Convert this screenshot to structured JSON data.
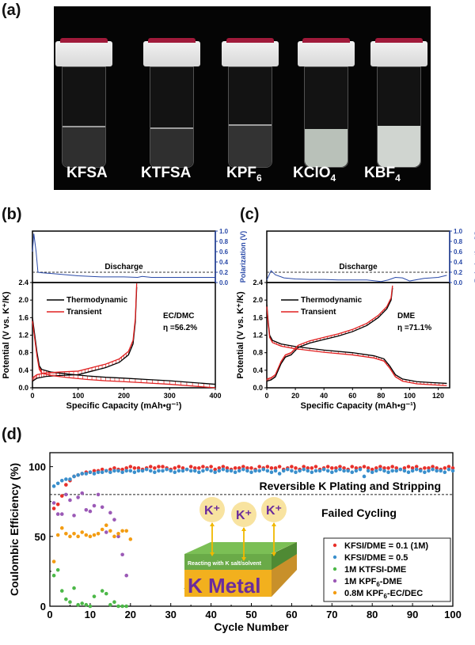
{
  "figure": {
    "panel_labels": [
      "(a)",
      "(b)",
      "(c)",
      "(d)"
    ]
  },
  "photo": {
    "background": "#050505",
    "vials": [
      {
        "label": "KFSA",
        "sub": "",
        "sub_suffix": "",
        "appearance": "clear"
      },
      {
        "label": "KTFSA",
        "sub": "",
        "sub_suffix": "",
        "appearance": "clear"
      },
      {
        "label": "KPF",
        "sub": "6",
        "sub_suffix": "",
        "appearance": "clear"
      },
      {
        "label": "KClO",
        "sub": "4",
        "sub_suffix": "",
        "appearance": "cloudy"
      },
      {
        "label": "KBF",
        "sub": "4",
        "sub_suffix": "",
        "appearance": "cloudy"
      }
    ]
  },
  "chart_data": [
    {
      "id": "b",
      "type": "line",
      "title": "",
      "xlabel": "Specific Capacity (mAh•g⁻¹)",
      "ylabel": "Potential (V vs. K⁺/K)",
      "y2label": "Polarization (V)",
      "xlim": [
        0,
        400
      ],
      "ylim": [
        0,
        2.4
      ],
      "y2lim": [
        0,
        1.0
      ],
      "xticks": [
        0,
        100,
        200,
        300,
        400
      ],
      "yticks": [
        0.0,
        0.4,
        0.8,
        1.2,
        1.6,
        2.0,
        2.4
      ],
      "y2ticks": [
        0.0,
        0.2,
        0.4,
        0.6,
        0.8,
        1.0
      ],
      "annotation_top": "Discharge",
      "reference_line_y2": 0.2,
      "electrolyte": "EC/DMC",
      "efficiency": "η =56.2%",
      "legend": [
        "Thermodynamic",
        "Transient"
      ],
      "colors": {
        "thermodynamic": "#000000",
        "transient": "#e02020",
        "polarization": "#2a4aa8"
      },
      "polarization": {
        "x": [
          0,
          3,
          8,
          12,
          20,
          50,
          100,
          150,
          200,
          230,
          240,
          260,
          300,
          350,
          400
        ],
        "y": [
          0.6,
          0.95,
          0.6,
          0.2,
          0.19,
          0.17,
          0.13,
          0.11,
          0.11,
          0.1,
          0.12,
          0.1,
          0.1,
          0.1,
          0.1
        ]
      },
      "discharge": {
        "x": [
          0,
          5,
          10,
          15,
          20,
          40,
          80,
          120,
          160,
          200,
          250,
          300,
          350,
          400
        ],
        "y": [
          1.6,
          1.2,
          0.8,
          0.5,
          0.42,
          0.36,
          0.31,
          0.27,
          0.24,
          0.22,
          0.19,
          0.16,
          0.12,
          0.08
        ]
      },
      "charge": {
        "x": [
          0,
          10,
          30,
          60,
          100,
          130,
          160,
          190,
          210,
          220,
          225,
          228
        ],
        "y": [
          0.15,
          0.22,
          0.26,
          0.28,
          0.3,
          0.38,
          0.46,
          0.58,
          0.75,
          1.0,
          1.5,
          2.3
        ]
      }
    },
    {
      "id": "c",
      "type": "line",
      "title": "",
      "xlabel": "Specific Capacity (mAh•g⁻¹)",
      "ylabel": "Potential (V vs. K⁺/K)",
      "y2label": "Polarization (V)",
      "xlim": [
        0,
        128
      ],
      "ylim": [
        0,
        2.4
      ],
      "y2lim": [
        0,
        1.0
      ],
      "xticks": [
        0,
        20,
        40,
        60,
        80,
        100,
        120
      ],
      "yticks": [
        0.0,
        0.4,
        0.8,
        1.2,
        1.6,
        2.0,
        2.4
      ],
      "y2ticks": [
        0.0,
        0.2,
        0.4,
        0.6,
        0.8,
        1.0
      ],
      "annotation_top": "Discharge",
      "reference_line_y2": 0.2,
      "electrolyte": "DME",
      "efficiency": "η =71.1%",
      "legend": [
        "Thermodynamic",
        "Transient"
      ],
      "colors": {
        "thermodynamic": "#000000",
        "transient": "#e02020",
        "polarization": "#2a4aa8"
      },
      "polarization": {
        "x": [
          0,
          3,
          6,
          12,
          20,
          30,
          40,
          50,
          60,
          70,
          80,
          85,
          90,
          95,
          100,
          110,
          120,
          126
        ],
        "y": [
          0.05,
          0.23,
          0.15,
          0.09,
          0.07,
          0.06,
          0.06,
          0.05,
          0.05,
          0.05,
          0.02,
          0.05,
          0.1,
          0.09,
          0.03,
          0.08,
          0.1,
          0.14
        ]
      },
      "discharge": {
        "x": [
          0,
          1,
          2,
          4,
          10,
          20,
          40,
          60,
          75,
          82,
          86,
          90,
          95,
          105,
          115,
          126
        ],
        "y": [
          1.9,
          1.5,
          1.2,
          1.08,
          1.0,
          0.94,
          0.86,
          0.8,
          0.73,
          0.66,
          0.5,
          0.3,
          0.2,
          0.14,
          0.12,
          0.1
        ]
      },
      "charge": {
        "x": [
          0,
          3,
          6,
          10,
          13,
          17,
          22,
          30,
          40,
          50,
          60,
          70,
          78,
          84,
          87,
          88
        ],
        "y": [
          0.15,
          0.18,
          0.25,
          0.55,
          0.7,
          0.75,
          0.92,
          1.02,
          1.1,
          1.18,
          1.28,
          1.42,
          1.6,
          1.8,
          2.0,
          2.28
        ]
      }
    },
    {
      "id": "d",
      "type": "scatter",
      "title": "",
      "xlabel": "Cycle Number",
      "ylabel": "Coulombic Efficiency (%)",
      "xlim": [
        0,
        100
      ],
      "ylim": [
        0,
        110
      ],
      "xticks": [
        0,
        10,
        20,
        30,
        40,
        50,
        60,
        70,
        80,
        90,
        100
      ],
      "yticks": [
        0,
        50,
        100
      ],
      "threshold_line": 80,
      "annotation_upper": "Reversible K Plating and Stripping",
      "annotation_lower": "Failed Cycling",
      "inset": {
        "ions": [
          "K⁺",
          "K⁺",
          "K⁺"
        ],
        "layer_text": "Reacting with K salt/solvent",
        "metal_text": "K  Metal"
      },
      "legend_position": "bottom-right",
      "series": [
        {
          "name": "KFSI/DME = 0.1 (1M)",
          "name_main": "KFSI/DME = 0.1 (1M)",
          "color": "#e8302a",
          "x": [
            1,
            2,
            3,
            4,
            5,
            6,
            7,
            8,
            9,
            10,
            11,
            12,
            13,
            14,
            15,
            16,
            17,
            18,
            19,
            20,
            21,
            22,
            23,
            24,
            25,
            26,
            27,
            28,
            29,
            30,
            31,
            32,
            33,
            34,
            35,
            36,
            37,
            38,
            39,
            40,
            41,
            42,
            43,
            44,
            45,
            46,
            47,
            48,
            49,
            50,
            51,
            52,
            53,
            54,
            55,
            56,
            57,
            58,
            59,
            60,
            61,
            62,
            63,
            64,
            65,
            66,
            67,
            68,
            69,
            70,
            71,
            72,
            73,
            74,
            75,
            76,
            77,
            78,
            79,
            80,
            81,
            82,
            83,
            84,
            85,
            86,
            87,
            88,
            89,
            90,
            91,
            92,
            93,
            94,
            95,
            96,
            97,
            98,
            99,
            100
          ],
          "y": [
            70,
            73,
            79,
            87,
            90,
            93,
            94,
            95,
            96,
            96,
            97,
            97,
            98,
            97,
            98,
            99,
            98,
            98,
            99,
            100,
            99,
            99,
            98,
            99,
            100,
            99,
            100,
            100,
            99,
            98,
            99,
            100,
            99,
            98,
            100,
            99,
            99,
            100,
            99,
            100,
            98,
            99,
            100,
            99,
            98,
            99,
            99,
            100,
            99,
            99,
            98,
            100,
            99,
            100,
            99,
            99,
            100,
            98,
            99,
            100,
            99,
            98,
            100,
            99,
            99,
            100,
            98,
            99,
            100,
            99,
            99,
            100,
            99,
            98,
            100,
            99,
            99,
            100,
            99,
            98,
            99,
            100,
            99,
            99,
            100,
            99,
            98,
            99,
            100,
            99,
            100,
            98,
            99,
            99,
            100,
            99,
            98,
            99,
            100,
            99
          ]
        },
        {
          "name": "KFSI/DME = 0.5",
          "name_main": "KFSI/DME = 0.5",
          "color": "#3a8fcc",
          "x": [
            1,
            2,
            3,
            4,
            5,
            6,
            7,
            8,
            9,
            10,
            11,
            12,
            13,
            14,
            15,
            16,
            17,
            18,
            19,
            20,
            21,
            22,
            23,
            24,
            25,
            26,
            27,
            28,
            29,
            30,
            31,
            32,
            33,
            34,
            35,
            36,
            37,
            38,
            39,
            40,
            41,
            42,
            43,
            44,
            45,
            46,
            47,
            48,
            49,
            50,
            51,
            52,
            53,
            54,
            55,
            56,
            57,
            58,
            59,
            60,
            61,
            62,
            63,
            64,
            65,
            66,
            67,
            68,
            69,
            70,
            71,
            72,
            73,
            74,
            75,
            76,
            77,
            78,
            79,
            80,
            81,
            82,
            83,
            84,
            85,
            86,
            87,
            88,
            89,
            90,
            91,
            92,
            93,
            94,
            95,
            96,
            97,
            98,
            99,
            100
          ],
          "y": [
            86,
            88,
            90,
            91,
            91,
            93,
            94,
            95,
            95,
            96,
            95,
            96,
            96,
            97,
            96,
            97,
            97,
            96,
            97,
            97,
            96,
            97,
            97,
            98,
            97,
            96,
            97,
            97,
            98,
            97,
            96,
            97,
            97,
            98,
            97,
            97,
            96,
            97,
            98,
            97,
            96,
            97,
            98,
            97,
            97,
            96,
            97,
            98,
            97,
            96,
            97,
            97,
            98,
            97,
            96,
            97,
            95,
            97,
            98,
            97,
            96,
            97,
            98,
            97,
            96,
            97,
            97,
            98,
            97,
            96,
            97,
            98,
            97,
            97,
            96,
            97,
            98,
            93,
            97,
            96,
            97,
            98,
            97,
            96,
            97,
            97,
            98,
            97,
            96,
            97,
            98,
            97,
            96,
            97,
            98,
            97,
            97,
            96,
            98,
            97
          ]
        },
        {
          "name": "1M KTFSI-DME",
          "name_main": "1M KTFSI-DME",
          "color": "#4cb848",
          "x": [
            1,
            2,
            3,
            4,
            5,
            6,
            7,
            8,
            9,
            10,
            11,
            13,
            14,
            15,
            16,
            17,
            18,
            19
          ],
          "y": [
            22,
            26,
            11,
            5,
            3,
            13,
            1,
            2,
            1,
            0,
            7,
            11,
            9,
            1,
            3,
            0,
            0,
            0
          ]
        },
        {
          "name": "1M KPF6-DME",
          "name_main": "1M KPF",
          "name_sub": "6",
          "name_suffix": "-DME",
          "color": "#9b59b6",
          "x": [
            1,
            2,
            3,
            4,
            5,
            6,
            7,
            8,
            9,
            10,
            11,
            12,
            13,
            14,
            15,
            16,
            17,
            18,
            19
          ],
          "y": [
            74,
            66,
            66,
            80,
            76,
            65,
            78,
            81,
            69,
            68,
            72,
            80,
            71,
            53,
            67,
            62,
            50,
            37,
            22
          ]
        },
        {
          "name": "0.8M KPF6-EC/DEC",
          "name_main": "0.8M KPF",
          "name_sub": "6",
          "name_suffix": "-EC/DEC",
          "color": "#f39c12",
          "x": [
            1,
            2,
            3,
            4,
            5,
            6,
            7,
            8,
            9,
            10,
            11,
            12,
            13,
            14,
            15,
            16,
            17,
            18,
            19,
            20
          ],
          "y": [
            32,
            51,
            56,
            52,
            50,
            52,
            50,
            53,
            51,
            50,
            51,
            52,
            55,
            58,
            54,
            50,
            52,
            54,
            54,
            48
          ]
        }
      ]
    }
  ]
}
